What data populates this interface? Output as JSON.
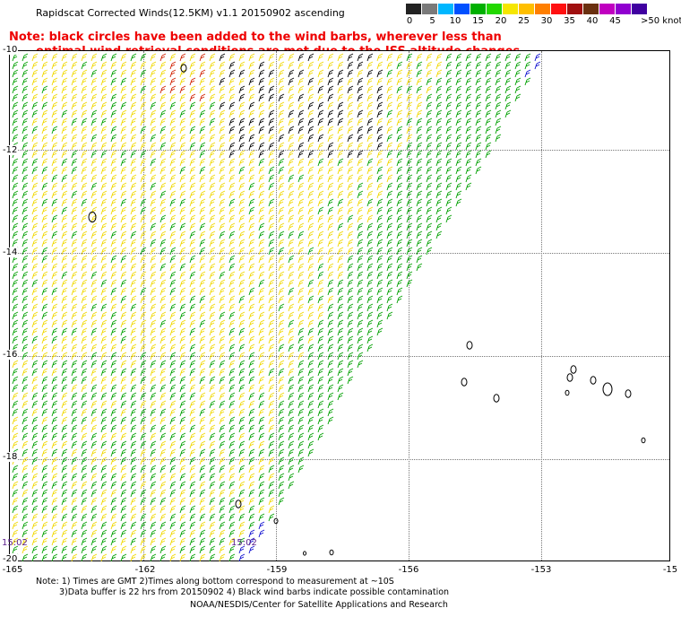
{
  "title": "Rapidscat Corrected Winds(12.5KM) v1.1 20150902 ascending",
  "note": {
    "line1": "Note: black circles have been added to the wind barbs, wherever less than",
    "line2": "optimal wind retrieval conditions are met due to the ISS altitude changes."
  },
  "legend": {
    "ticks": [
      "0",
      "5",
      "10",
      "15",
      "20",
      "25",
      "30",
      "35",
      "40",
      "45",
      ">50 knots"
    ],
    "colors": [
      "#222222",
      "#7a7a7a",
      "#00b7ff",
      "#0050ff",
      "#00b000",
      "#22d800",
      "#f5e600",
      "#ffbf00",
      "#ff7f00",
      "#ff1010",
      "#a01010",
      "#6a3010",
      "#c000c0",
      "#9000d0",
      "#4000a0"
    ]
  },
  "map": {
    "lat_labels": [
      "-10",
      "-12",
      "-14",
      "-16",
      "-18",
      "-20"
    ],
    "lon_labels": [
      "-165",
      "-162",
      "-159",
      "-156",
      "-153",
      "-15"
    ],
    "time_labels": [
      "15:02",
      "15:02"
    ]
  },
  "footer": {
    "line1": "Note: 1) Times are GMT 2)Times along bottom correspond to measurement at ~10S",
    "line2": "3)Data buffer is 22 hrs from 20150902 4) Black wind barbs indicate possible contamination",
    "line3": "NOAA/NESDIS/Center for Satellite Applications and Research"
  },
  "colors": {
    "barb_yellow": "#f0d800",
    "barb_green": "#00a000",
    "barb_black": "#000000",
    "barb_red": "#d02000",
    "barb_blue": "#1010d0",
    "time_label": "#5a1e8c"
  }
}
